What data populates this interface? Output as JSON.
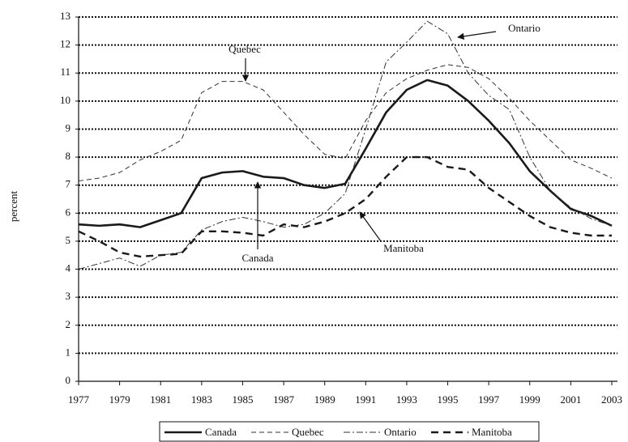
{
  "chart_data": {
    "type": "line",
    "y_label": "percent",
    "x": [
      1977,
      1978,
      1979,
      1980,
      1981,
      1982,
      1983,
      1984,
      1985,
      1986,
      1987,
      1988,
      1989,
      1990,
      1991,
      1992,
      1993,
      1994,
      1995,
      1996,
      1997,
      1998,
      1999,
      2000,
      2001,
      2002,
      2003
    ],
    "xlim": [
      1977,
      2003
    ],
    "xticks": [
      1977,
      1979,
      1981,
      1983,
      1985,
      1987,
      1989,
      1991,
      1993,
      1995,
      1997,
      1999,
      2001,
      2003
    ],
    "ylim": [
      0,
      13
    ],
    "yticks": [
      0,
      1,
      2,
      3,
      4,
      5,
      6,
      7,
      8,
      9,
      10,
      11,
      12,
      13
    ],
    "grid": true,
    "legend": "bottom",
    "series": [
      {
        "name": "Canada",
        "color": "#1a1a1a",
        "style": "solid",
        "values": [
          5.6,
          5.55,
          5.6,
          5.5,
          5.75,
          6.0,
          7.25,
          7.45,
          7.5,
          7.3,
          7.25,
          7.0,
          6.9,
          7.05,
          8.3,
          9.6,
          10.4,
          10.75,
          10.55,
          10.0,
          9.3,
          8.5,
          7.5,
          6.8,
          6.15,
          5.9,
          5.55
        ]
      },
      {
        "name": "Quebec",
        "color": "#333333",
        "style": "dashed",
        "values": [
          7.15,
          7.25,
          7.45,
          7.9,
          8.2,
          8.6,
          10.3,
          10.7,
          10.7,
          10.4,
          9.6,
          8.8,
          8.1,
          7.95,
          9.3,
          10.3,
          10.8,
          11.1,
          11.3,
          11.2,
          10.8,
          10.1,
          9.3,
          8.6,
          7.9,
          7.6,
          7.25
        ]
      },
      {
        "name": "Ontario",
        "color": "#333333",
        "style": "dashdot",
        "values": [
          4.0,
          4.2,
          4.4,
          4.1,
          4.5,
          4.6,
          5.4,
          5.7,
          5.85,
          5.7,
          5.5,
          5.6,
          6.0,
          6.7,
          9.0,
          11.4,
          12.1,
          12.85,
          12.4,
          11.0,
          10.2,
          9.7,
          8.0,
          6.8,
          6.2,
          5.8,
          5.55
        ]
      },
      {
        "name": "Manitoba",
        "color": "#1a1a1a",
        "style": "longdash",
        "values": [
          5.35,
          5.0,
          4.6,
          4.45,
          4.5,
          4.55,
          5.35,
          5.35,
          5.3,
          5.2,
          5.6,
          5.5,
          5.7,
          6.0,
          6.5,
          7.3,
          8.0,
          8.0,
          7.65,
          7.55,
          6.9,
          6.4,
          5.9,
          5.5,
          5.3,
          5.2,
          5.2
        ]
      }
    ],
    "annotations": [
      "Quebec",
      "Ontario",
      "Canada",
      "Manitoba"
    ]
  }
}
